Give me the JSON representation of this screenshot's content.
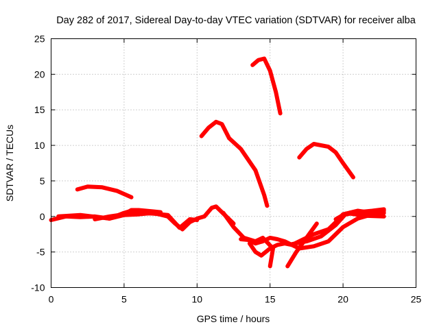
{
  "chart_data": {
    "type": "scatter",
    "title": "Day 282 of 2017, Sidereal Day-to-day VTEC variation (SDTVAR) for receiver alba",
    "xlabel": "GPS time / hours",
    "ylabel": "SDTVAR / TECUs",
    "xlim": [
      0,
      25
    ],
    "ylim": [
      -10,
      25
    ],
    "xticks": [
      0,
      5,
      10,
      15,
      20,
      25
    ],
    "yticks": [
      -10,
      -5,
      0,
      5,
      10,
      15,
      20,
      25
    ],
    "grid": true,
    "color": "#ff0000",
    "series": [
      {
        "name": "arc-a",
        "x": [
          0,
          1,
          2,
          3,
          4,
          5,
          6,
          7,
          8,
          8.5,
          9,
          9.5,
          10,
          10.5,
          11,
          11.3,
          12,
          12.5
        ],
        "y": [
          -0.5,
          0,
          -0.1,
          0,
          -0.3,
          0.2,
          0.3,
          0.5,
          0,
          -1,
          -1.8,
          -0.8,
          -0.3,
          0,
          1.2,
          1.4,
          0,
          -1
        ]
      },
      {
        "name": "arc-b",
        "x": [
          0.5,
          2,
          4,
          5,
          5.5,
          6,
          7,
          8,
          8.8,
          9.5,
          10
        ],
        "y": [
          0,
          0.2,
          -0.3,
          0.5,
          0.8,
          0.5,
          0.4,
          0.2,
          -1.6,
          -0.4,
          -0.5
        ]
      },
      {
        "name": "arc-c",
        "x": [
          3,
          4,
          5,
          5.5,
          6,
          7,
          7.5
        ],
        "y": [
          -0.4,
          0,
          0.3,
          0.9,
          0.9,
          0.7,
          0.6
        ]
      },
      {
        "name": "arc-d",
        "x": [
          1.8,
          2.5,
          3.5,
          4.5,
          5.5
        ],
        "y": [
          3.8,
          4.2,
          4.1,
          3.6,
          2.7
        ]
      },
      {
        "name": "arc-e",
        "x": [
          10.3,
          10.8,
          11.3,
          11.7,
          12.2,
          13,
          14,
          14.6,
          14.8
        ],
        "y": [
          11.3,
          12.5,
          13.3,
          13,
          11,
          9.5,
          6.5,
          3,
          1.5
        ]
      },
      {
        "name": "arc-f",
        "x": [
          13.8,
          14.2,
          14.6,
          15,
          15.4,
          15.7
        ],
        "y": [
          21.3,
          22,
          22.2,
          20.5,
          17.5,
          14.5
        ]
      },
      {
        "name": "arc-g",
        "x": [
          17,
          17.5,
          18,
          19,
          19.5,
          20,
          20.7
        ],
        "y": [
          8.3,
          9.5,
          10.2,
          9.8,
          9,
          7.5,
          5.5
        ]
      },
      {
        "name": "arc-h",
        "x": [
          11.8,
          12.5,
          13.2,
          14,
          14.5,
          15.2,
          15
        ],
        "y": [
          0.5,
          -1.5,
          -3,
          -3.5,
          -3,
          -4.5,
          -7
        ]
      },
      {
        "name": "arc-i",
        "x": [
          13,
          13.5,
          14,
          14.5,
          15,
          15.5,
          16,
          16.5,
          17,
          18,
          19,
          19.5,
          20,
          21,
          22,
          22.8
        ],
        "y": [
          -3.2,
          -3.3,
          -3.8,
          -3.5,
          -3,
          -3.2,
          -3.5,
          -4,
          -4.5,
          -4.2,
          -3.5,
          -2.5,
          -1.5,
          -0.3,
          0.3,
          0.5
        ]
      },
      {
        "name": "arc-j",
        "x": [
          13.6,
          14,
          14.4,
          15,
          15.5,
          16,
          16.5,
          17,
          18,
          19,
          19.5,
          20,
          21,
          22,
          22.8
        ],
        "y": [
          -3.8,
          -5,
          -5.5,
          -4.5,
          -4,
          -3.8,
          -4,
          -3.5,
          -2.5,
          -1.8,
          -0.8,
          0.3,
          0.8,
          0.5,
          0.8
        ]
      },
      {
        "name": "arc-k",
        "x": [
          16.2,
          16.8,
          17.5,
          18.2
        ],
        "y": [
          -7,
          -5,
          -3,
          -1
        ]
      },
      {
        "name": "arc-l",
        "x": [
          16.5,
          17.5,
          18.5,
          19.5,
          20.2,
          21,
          22,
          22.8
        ],
        "y": [
          -3.9,
          -3.5,
          -2.8,
          -1.2,
          0.4,
          0.6,
          0.8,
          1
        ]
      },
      {
        "name": "arc-m",
        "x": [
          19.5,
          20,
          20.5,
          21.5,
          22.8
        ],
        "y": [
          -0.4,
          0.2,
          0.4,
          0.1,
          0
        ]
      }
    ]
  }
}
